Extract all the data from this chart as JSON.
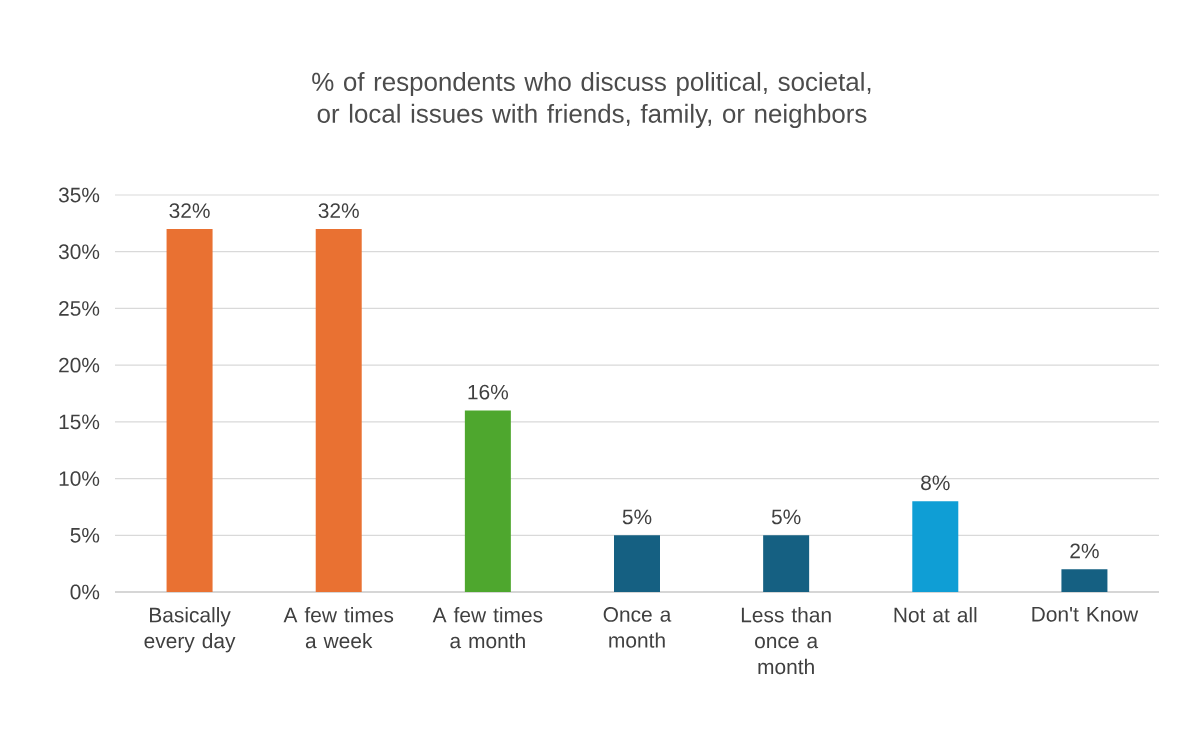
{
  "chart_data": {
    "type": "bar",
    "title": "% of respondents who discuss political, societal, or local issues with friends, family, or neighbors",
    "categories": [
      "Basically every day",
      "A few times a week",
      "A few times a month",
      "Once a month",
      "Less than once a month",
      "Not at all",
      "Don't Know"
    ],
    "values": [
      32,
      32,
      16,
      5,
      5,
      8,
      2
    ],
    "colors": [
      "#e97132",
      "#e97132",
      "#4ea72e",
      "#156082",
      "#156082",
      "#0f9ed5",
      "#156082"
    ],
    "ylim": [
      0,
      35
    ],
    "yticks": [
      {
        "value": 0,
        "label": "0%"
      },
      {
        "value": 5,
        "label": "5%"
      },
      {
        "value": 10,
        "label": "10%"
      },
      {
        "value": 15,
        "label": "15%"
      },
      {
        "value": 20,
        "label": "20%"
      },
      {
        "value": 25,
        "label": "25%"
      },
      {
        "value": 30,
        "label": "30%"
      },
      {
        "value": 35,
        "label": "35%"
      }
    ],
    "value_labels": [
      "32%",
      "32%",
      "16%",
      "5%",
      "5%",
      "8%",
      "2%"
    ],
    "grid": true
  }
}
